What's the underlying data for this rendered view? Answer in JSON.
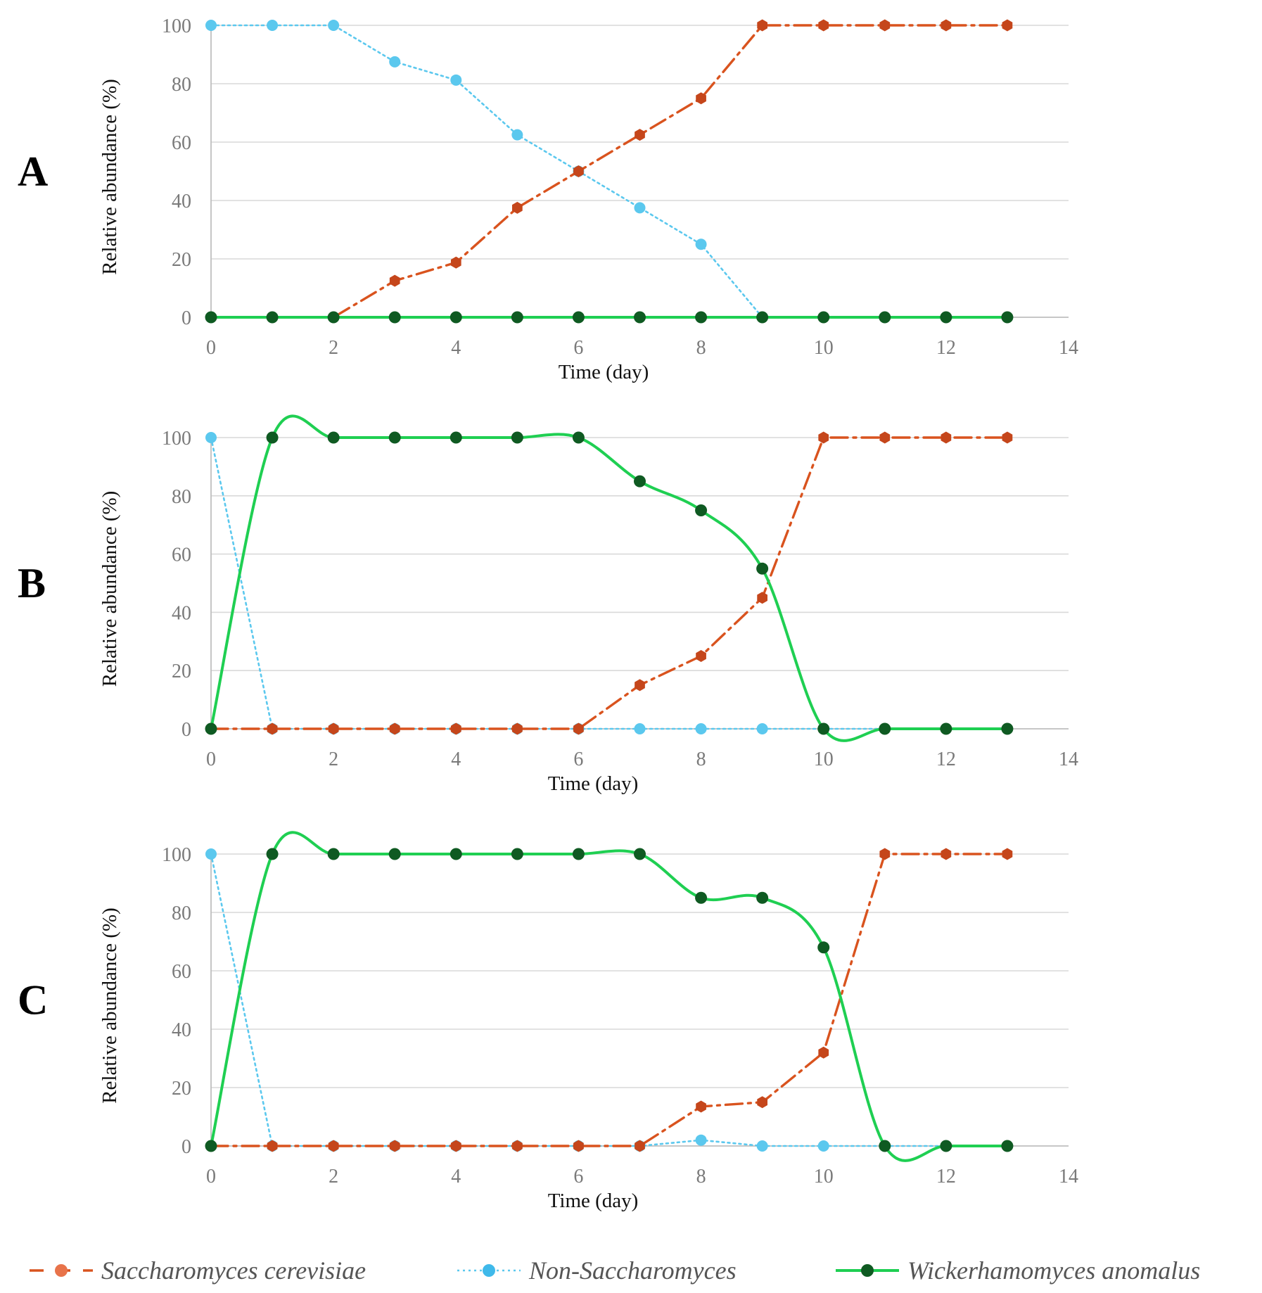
{
  "chart_data": [
    {
      "type": "line",
      "panel_label": "A",
      "xlabel": "Time (day)",
      "ylabel": "Relative abundance (%)",
      "xlim": [
        0,
        14
      ],
      "ylim": [
        0,
        100
      ],
      "xticks": [
        0,
        2,
        4,
        6,
        8,
        10,
        12,
        14
      ],
      "yticks": [
        0,
        20,
        40,
        60,
        80,
        100
      ],
      "grid": "horizontal",
      "series": [
        {
          "name": "Saccharomyces cerevisiae",
          "key": "sc",
          "x": [
            0,
            1,
            2,
            3,
            4,
            5,
            6,
            7,
            8,
            9,
            10,
            11,
            12,
            13
          ],
          "values": [
            0,
            0,
            0,
            12.5,
            18.75,
            37.5,
            50,
            62.5,
            75,
            100,
            100,
            100,
            100,
            100
          ]
        },
        {
          "name": "Non-Saccharomyces",
          "key": "ns",
          "x": [
            0,
            1,
            2,
            3,
            4,
            5,
            6,
            7,
            8,
            9,
            10,
            11,
            12,
            13
          ],
          "values": [
            100,
            100,
            100,
            87.5,
            81.25,
            62.5,
            50,
            37.5,
            25,
            0,
            0,
            0,
            0,
            0
          ]
        },
        {
          "name": "Wickerhamomyces anomalus",
          "key": "wa",
          "x": [
            0,
            1,
            2,
            3,
            4,
            5,
            6,
            7,
            8,
            9,
            10,
            11,
            12,
            13
          ],
          "values": [
            0,
            0,
            0,
            0,
            0,
            0,
            0,
            0,
            0,
            0,
            0,
            0,
            0,
            0
          ]
        }
      ]
    },
    {
      "type": "line",
      "panel_label": "B",
      "xlabel": "Time (day)",
      "ylabel": "Relative abundance (%)",
      "xlim": [
        0,
        14
      ],
      "ylim": [
        0,
        100
      ],
      "xticks": [
        0,
        2,
        4,
        6,
        8,
        10,
        12,
        14
      ],
      "yticks": [
        0,
        20,
        40,
        60,
        80,
        100
      ],
      "grid": "horizontal",
      "series": [
        {
          "name": "Saccharomyces cerevisiae",
          "key": "sc",
          "x": [
            0,
            1,
            2,
            3,
            4,
            5,
            6,
            7,
            8,
            9,
            10,
            11,
            12,
            13
          ],
          "values": [
            0,
            0,
            0,
            0,
            0,
            0,
            0,
            15,
            25,
            45,
            100,
            100,
            100,
            100
          ]
        },
        {
          "name": "Non-Saccharomyces",
          "key": "ns",
          "x": [
            0,
            1,
            2,
            3,
            4,
            5,
            6,
            7,
            8,
            9,
            10,
            11,
            12,
            13
          ],
          "values": [
            100,
            0,
            0,
            0,
            0,
            0,
            0,
            0,
            0,
            0,
            0,
            0,
            0,
            0
          ]
        },
        {
          "name": "Wickerhamomyces anomalus",
          "key": "wa",
          "x": [
            0,
            1,
            2,
            3,
            4,
            5,
            6,
            7,
            8,
            9,
            10,
            11,
            12,
            13
          ],
          "values": [
            0,
            100,
            100,
            100,
            100,
            100,
            100,
            85,
            75,
            55,
            0,
            0,
            0,
            0
          ]
        }
      ]
    },
    {
      "type": "line",
      "panel_label": "C",
      "xlabel": "Time (day)",
      "ylabel": "Relative abundance (%)",
      "xlim": [
        0,
        14
      ],
      "ylim": [
        0,
        100
      ],
      "xticks": [
        0,
        2,
        4,
        6,
        8,
        10,
        12,
        14
      ],
      "yticks": [
        0,
        20,
        40,
        60,
        80,
        100
      ],
      "grid": "horizontal",
      "series": [
        {
          "name": "Saccharomyces cerevisiae",
          "key": "sc",
          "x": [
            0,
            1,
            2,
            3,
            4,
            5,
            6,
            7,
            8,
            9,
            10,
            11,
            12,
            13
          ],
          "values": [
            0,
            0,
            0,
            0,
            0,
            0,
            0,
            0,
            13.5,
            15,
            32,
            100,
            100,
            100
          ]
        },
        {
          "name": "Non-Saccharomyces",
          "key": "ns",
          "x": [
            0,
            1,
            2,
            3,
            4,
            5,
            6,
            7,
            8,
            9,
            10,
            11,
            12,
            13
          ],
          "values": [
            100,
            0,
            0,
            0,
            0,
            0,
            0,
            0,
            2,
            0,
            0,
            0,
            0,
            0
          ]
        },
        {
          "name": "Wickerhamomyces anomalus",
          "key": "wa",
          "x": [
            0,
            1,
            2,
            3,
            4,
            5,
            6,
            7,
            8,
            9,
            10,
            11,
            12,
            13
          ],
          "values": [
            0,
            100,
            100,
            100,
            100,
            100,
            100,
            100,
            85,
            85,
            68,
            0,
            0,
            0
          ]
        }
      ]
    }
  ],
  "legend": {
    "placement": "bottom",
    "items": [
      {
        "key": "sc",
        "label": "Saccharomyces cerevisiae"
      },
      {
        "key": "ns",
        "label": "Non-Saccharomyces"
      },
      {
        "key": "wa",
        "label": "Wickerhamomyces anomalus"
      }
    ]
  },
  "colors": {
    "sc_line": "#d9531e",
    "sc_marker": "#c5461b",
    "ns_line": "#5bc8ee",
    "ns_marker": "#5bc8ee",
    "wa_line": "#1fcf52",
    "wa_marker": "#0f5a22"
  }
}
